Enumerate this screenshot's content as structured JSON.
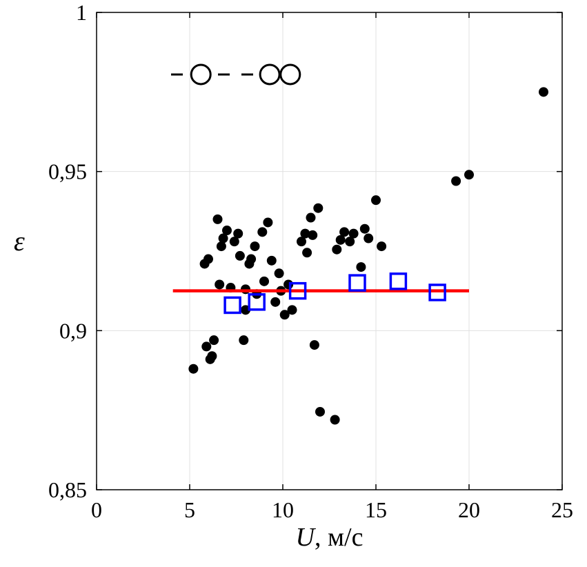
{
  "figure": {
    "background": "#ffffff"
  },
  "colors": {
    "axis": "#000000",
    "grid": "#e0e0e0",
    "dots": "#000000",
    "squares": "#0000ff",
    "mean_line": "#ff0000",
    "dashed_line": "#000000"
  },
  "chart_data": {
    "type": "scatter",
    "title": "",
    "xlabel": "U, м/с",
    "xlabel_parts": {
      "italic": "U",
      "regular": ", м/с"
    },
    "ylabel": "ε",
    "xlim": [
      0,
      25
    ],
    "ylim": [
      0.85,
      1
    ],
    "x_ticks": [
      0,
      5,
      10,
      15,
      20,
      25
    ],
    "x_tick_labels": [
      "0",
      "5",
      "10",
      "15",
      "20",
      "25"
    ],
    "y_ticks": [
      0.85,
      0.9,
      0.95,
      1
    ],
    "y_tick_labels": [
      "0,85",
      "0,9",
      "0,95",
      "1"
    ],
    "grid": true,
    "legend_position": "none",
    "series": [
      {
        "name": "measured-points",
        "label": "experimental points (black dots)",
        "marker": {
          "shape": "dot",
          "size": 7,
          "color": "#000000"
        },
        "points": [
          [
            5.2,
            0.888
          ],
          [
            5.8,
            0.921
          ],
          [
            5.9,
            0.895
          ],
          [
            6.0,
            0.9225
          ],
          [
            6.1,
            0.891
          ],
          [
            6.2,
            0.892
          ],
          [
            6.3,
            0.897
          ],
          [
            6.5,
            0.935
          ],
          [
            6.6,
            0.9145
          ],
          [
            6.7,
            0.9265
          ],
          [
            6.8,
            0.929
          ],
          [
            7.0,
            0.9315
          ],
          [
            7.2,
            0.9135
          ],
          [
            7.4,
            0.928
          ],
          [
            7.6,
            0.9305
          ],
          [
            7.7,
            0.9235
          ],
          [
            7.9,
            0.897
          ],
          [
            8.0,
            0.9065
          ],
          [
            8.0,
            0.913
          ],
          [
            8.2,
            0.921
          ],
          [
            8.3,
            0.9225
          ],
          [
            8.5,
            0.9265
          ],
          [
            8.6,
            0.9115
          ],
          [
            8.9,
            0.931
          ],
          [
            9.0,
            0.9155
          ],
          [
            9.2,
            0.934
          ],
          [
            9.4,
            0.922
          ],
          [
            9.6,
            0.909
          ],
          [
            9.8,
            0.918
          ],
          [
            9.9,
            0.9125
          ],
          [
            10.1,
            0.905
          ],
          [
            10.3,
            0.9145
          ],
          [
            10.5,
            0.9065
          ],
          [
            11.0,
            0.928
          ],
          [
            11.2,
            0.9305
          ],
          [
            11.3,
            0.9245
          ],
          [
            11.5,
            0.9355
          ],
          [
            11.6,
            0.93
          ],
          [
            11.7,
            0.8955
          ],
          [
            11.9,
            0.9385
          ],
          [
            12.0,
            0.8745
          ],
          [
            12.8,
            0.872
          ],
          [
            12.9,
            0.9255
          ],
          [
            13.1,
            0.9285
          ],
          [
            13.3,
            0.931
          ],
          [
            13.6,
            0.928
          ],
          [
            13.8,
            0.9305
          ],
          [
            14.2,
            0.92
          ],
          [
            14.4,
            0.932
          ],
          [
            14.6,
            0.929
          ],
          [
            15.0,
            0.941
          ],
          [
            15.3,
            0.9265
          ],
          [
            19.3,
            0.947
          ],
          [
            20.0,
            0.949
          ],
          [
            24.0,
            0.975
          ]
        ]
      },
      {
        "name": "mean-line",
        "label": "mean level line (red)",
        "line": {
          "color": "#ff0000",
          "width": 4.5
        },
        "points": [
          [
            4.1,
            0.9125
          ],
          [
            20.0,
            0.9125
          ]
        ]
      },
      {
        "name": "averaged-points",
        "label": "bin-averaged points (blue open squares)",
        "marker": {
          "shape": "open-square",
          "size": 11,
          "color": "#0000ff",
          "stroke_width": 3.5
        },
        "points": [
          [
            7.3,
            0.908
          ],
          [
            8.6,
            0.909
          ],
          [
            10.8,
            0.9125
          ],
          [
            14.0,
            0.915
          ],
          [
            16.2,
            0.9155
          ],
          [
            18.3,
            0.912
          ]
        ]
      },
      {
        "name": "reference-dashed-circles",
        "label": "dashed reference with open circles",
        "line": {
          "color": "#000000",
          "width": 3,
          "dash": [
            17,
            17
          ]
        },
        "marker": {
          "shape": "open-circle",
          "size": 14,
          "color": "#000000",
          "stroke_width": 3
        },
        "marker_points": [
          [
            5.6,
            0.9805
          ],
          [
            9.3,
            0.9805
          ],
          [
            10.4,
            0.9805
          ]
        ],
        "points": [
          [
            4.0,
            0.9805
          ],
          [
            11.0,
            0.9805
          ]
        ]
      }
    ]
  }
}
